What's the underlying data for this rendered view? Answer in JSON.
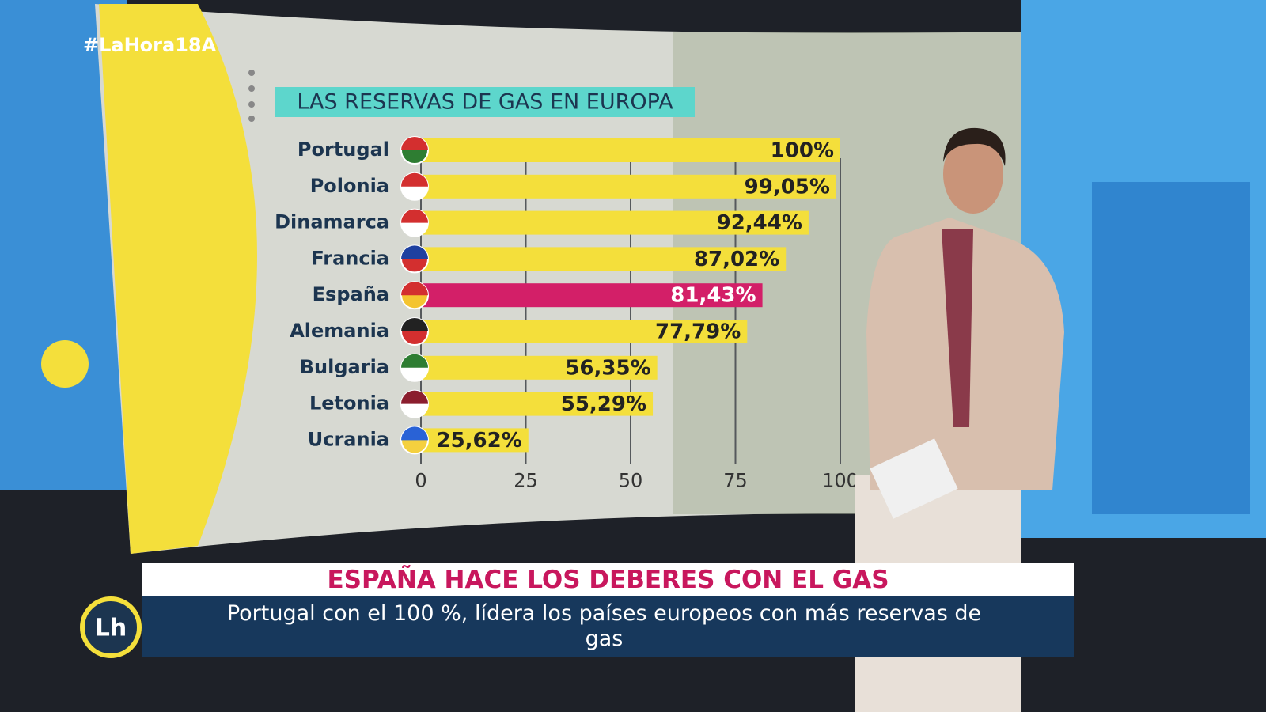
{
  "hashtag": "#LaHora18A",
  "logo": "Lh",
  "chart_data": {
    "type": "hbar",
    "title": "LAS RESERVAS DE GAS EN EUROPA",
    "categories": [
      "Portugal",
      "Polonia",
      "Dinamarca",
      "Francia",
      "España",
      "Alemania",
      "Bulgaria",
      "Letonia",
      "Ucrania"
    ],
    "values": [
      100,
      99.05,
      92.44,
      87.02,
      81.43,
      77.79,
      56.35,
      55.29,
      25.62
    ],
    "value_labels": [
      "100%",
      "99,05%",
      "92,44%",
      "87,02%",
      "81,43%",
      "77,79%",
      "56,35%",
      "55,29%",
      "25,62%"
    ],
    "colors": [
      "#f4df3b",
      "#f4df3b",
      "#f4df3b",
      "#f4df3b",
      "#d31f68",
      "#f4df3b",
      "#f4df3b",
      "#f4df3b",
      "#f4df3b"
    ],
    "value_label_colors": [
      "#222222",
      "#222222",
      "#222222",
      "#222222",
      "#ffffff",
      "#222222",
      "#222222",
      "#222222",
      "#222222"
    ],
    "xlim": [
      0,
      100
    ],
    "xticks": [
      0,
      25,
      50,
      75,
      100
    ],
    "grid": true
  },
  "lower_third": {
    "headline": "ESPAÑA HACE LOS DEBERES CON EL GAS",
    "subtitle": "Portugal con el 100 %, lídera los países europeos con más reservas de gas"
  }
}
